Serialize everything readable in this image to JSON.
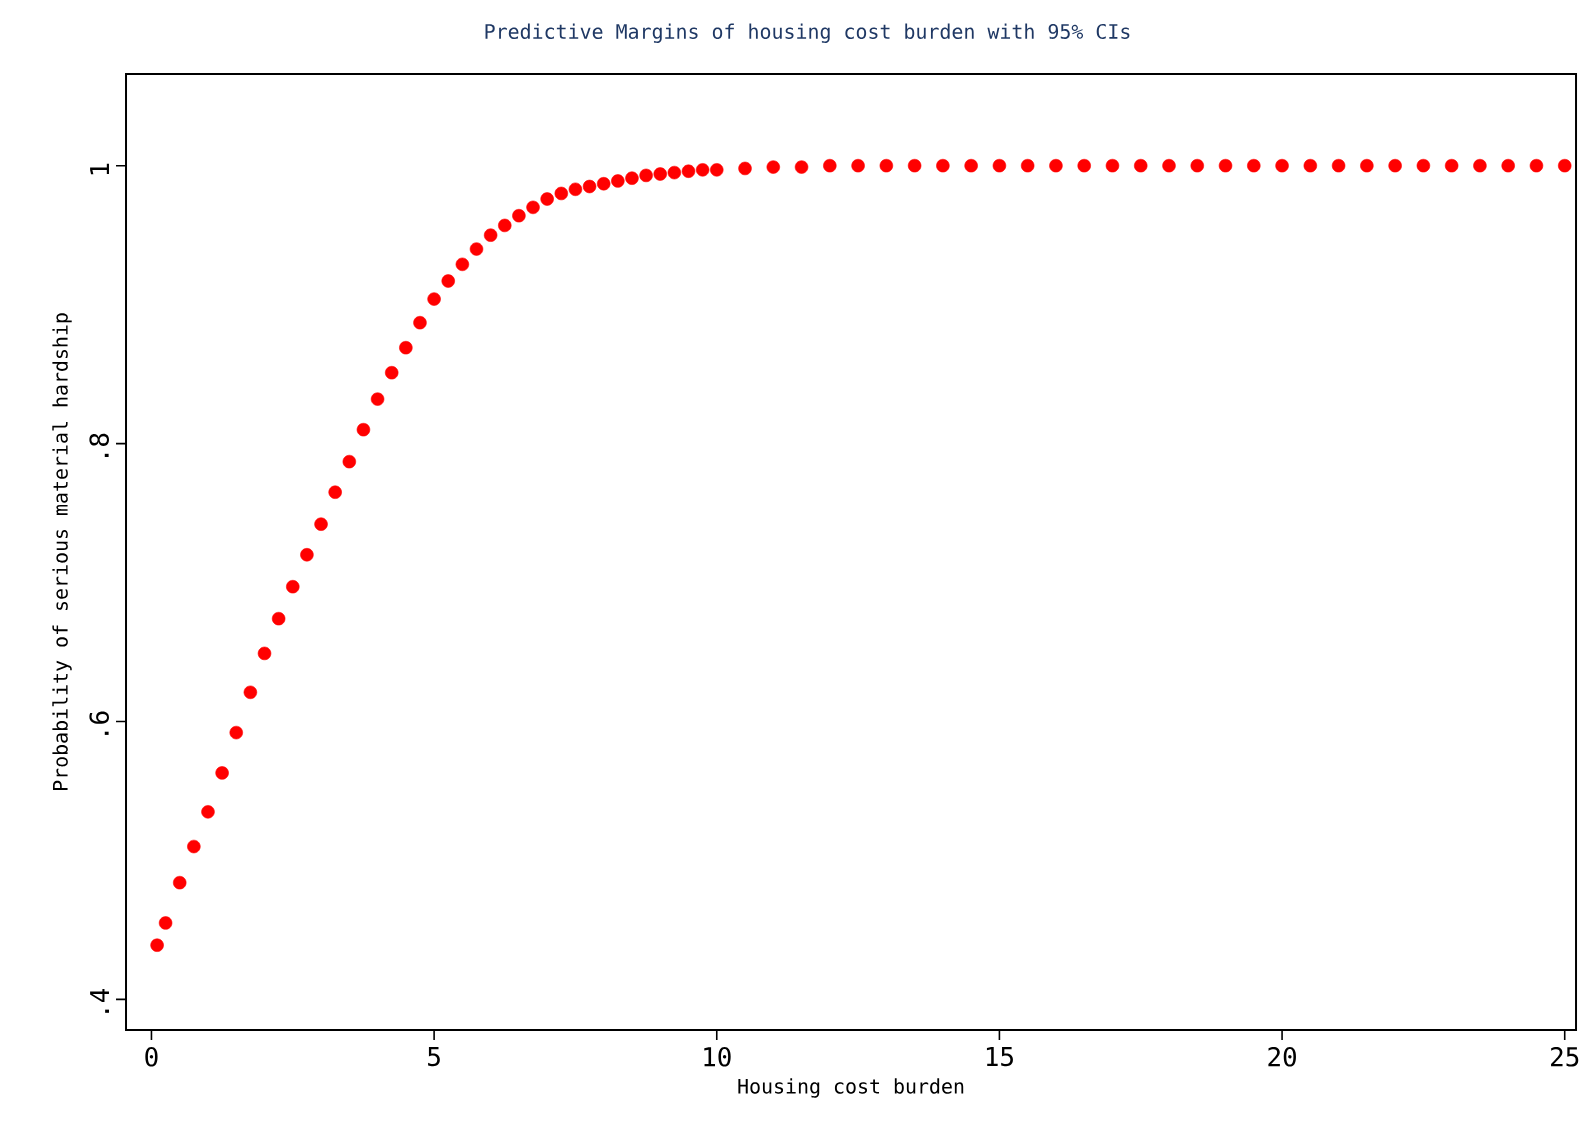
{
  "chart_data": {
    "type": "scatter",
    "title": "Predictive Margins of housing cost burden with 95% CIs",
    "xlabel": "Housing cost burden",
    "ylabel": "Probability of serious material hardship",
    "xlim": [
      -0.45,
      25.2
    ],
    "ylim": [
      0.378,
      1.066
    ],
    "xticks": [
      0,
      5,
      10,
      15,
      20,
      25
    ],
    "yticks": [
      {
        "value": 0.4,
        "label": ".4"
      },
      {
        "value": 0.6,
        "label": ".6"
      },
      {
        "value": 0.8,
        "label": ".8"
      },
      {
        "value": 1,
        "label": "1"
      }
    ],
    "marker": "circle",
    "color": "#ff0000",
    "x": [
      0.1,
      0.25,
      0.5,
      0.75,
      1,
      1.25,
      1.5,
      1.75,
      2,
      2.25,
      2.5,
      2.75,
      3,
      3.25,
      3.5,
      3.75,
      4,
      4.25,
      4.5,
      4.75,
      5,
      5.25,
      5.5,
      5.75,
      6,
      6.25,
      6.5,
      6.75,
      7,
      7.25,
      7.5,
      7.75,
      8,
      8.25,
      8.5,
      8.75,
      9,
      9.25,
      9.5,
      9.75,
      10,
      10.5,
      11,
      11.5,
      12,
      12.5,
      13,
      13.5,
      14,
      14.5,
      15,
      15.5,
      16,
      16.5,
      17,
      17.5,
      18,
      18.5,
      19,
      19.5,
      20,
      20.5,
      21,
      21.5,
      22,
      22.5,
      23,
      23.5,
      24,
      24.5,
      25
    ],
    "values": [
      0.439,
      0.455,
      0.484,
      0.51,
      0.535,
      0.563,
      0.592,
      0.621,
      0.649,
      0.674,
      0.697,
      0.72,
      0.742,
      0.765,
      0.787,
      0.81,
      0.832,
      0.851,
      0.869,
      0.887,
      0.904,
      0.917,
      0.929,
      0.94,
      0.95,
      0.957,
      0.964,
      0.97,
      0.976,
      0.98,
      0.983,
      0.985,
      0.987,
      0.989,
      0.991,
      0.993,
      0.994,
      0.995,
      0.996,
      0.997,
      0.997,
      0.998,
      0.999,
      0.999,
      1,
      1,
      1,
      1,
      1,
      1,
      1,
      1,
      1,
      1,
      1,
      1,
      1,
      1,
      1,
      1,
      1,
      1,
      1,
      1,
      1,
      1,
      1,
      1,
      1,
      1,
      1
    ]
  }
}
